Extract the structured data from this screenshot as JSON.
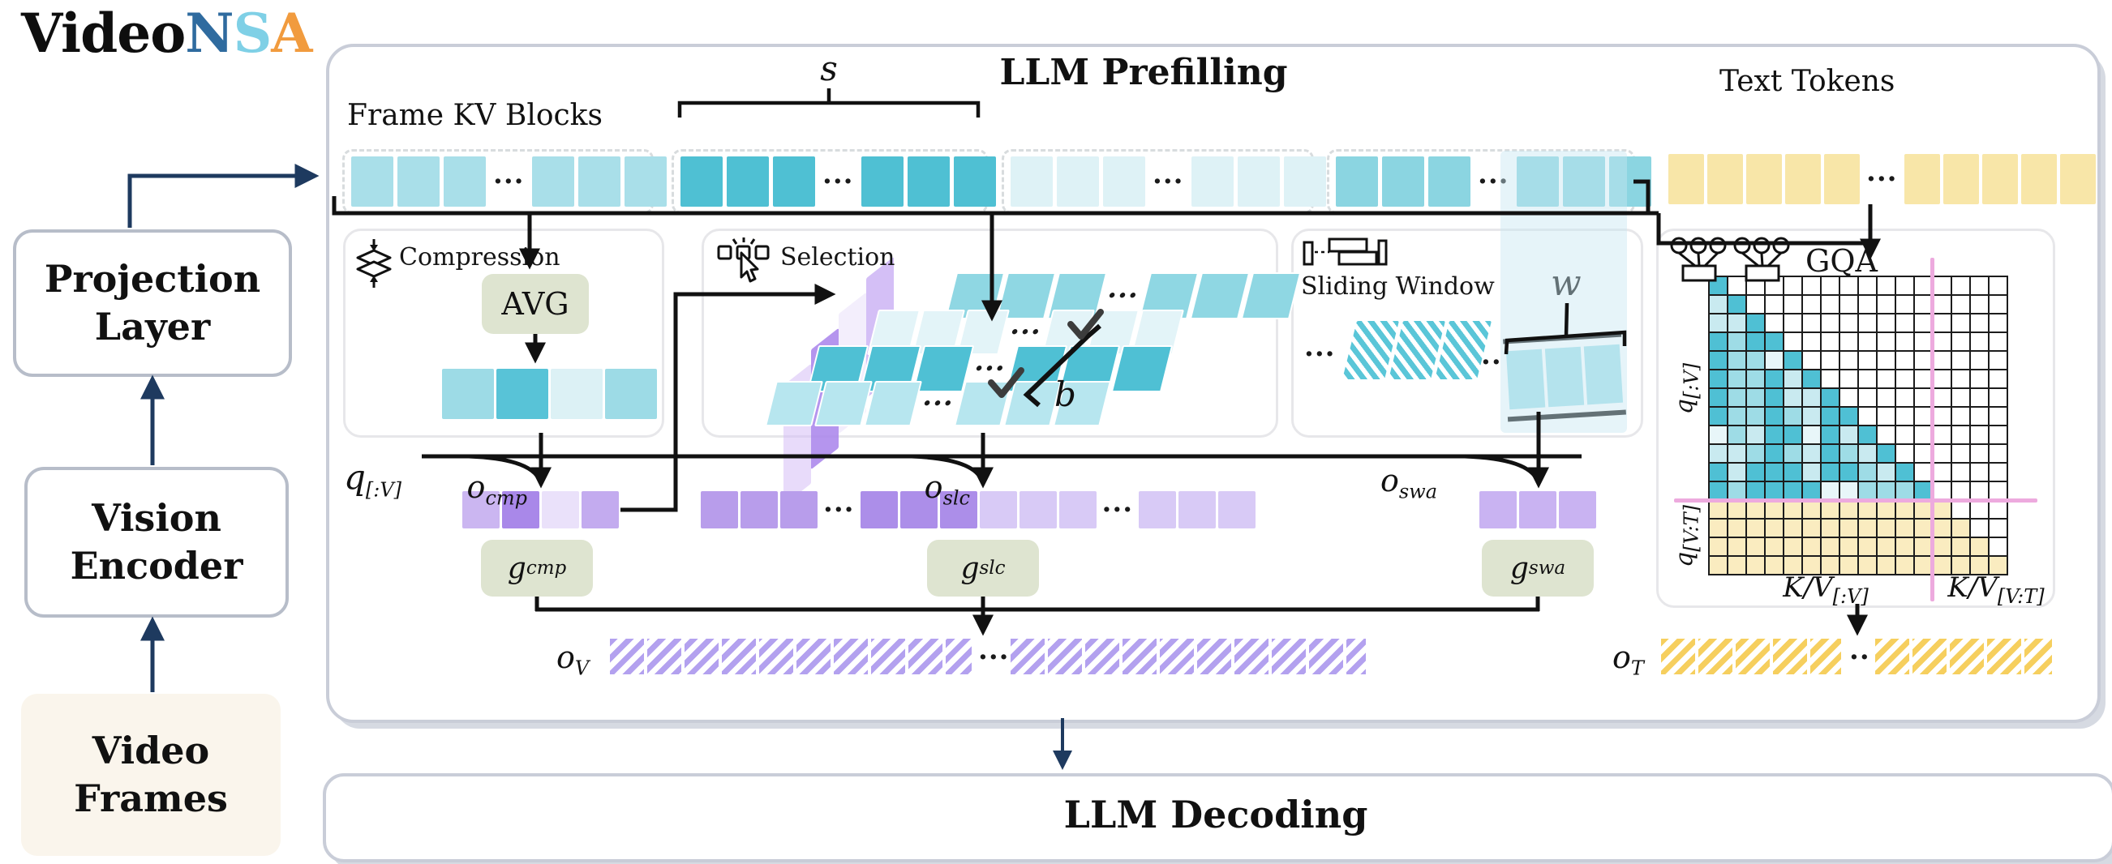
{
  "logo": {
    "parts": [
      {
        "text": "Video",
        "color": "#0e0e0e"
      },
      {
        "text": "N",
        "color": "#2f6b9f"
      },
      {
        "text": "S",
        "color": "#7fd0e6"
      },
      {
        "text": "A",
        "color": "#f19b3e"
      }
    ]
  },
  "pipeline": {
    "projection": {
      "line1": "Projection",
      "line2": "Layer"
    },
    "vision": {
      "line1": "Vision",
      "line2": "Encoder"
    },
    "video": {
      "line1": "Video",
      "line2": "Frames"
    },
    "video_bg": "#faf5ec"
  },
  "prefill": {
    "title": "LLM Prefilling",
    "frame_kv_label": "Frame KV Blocks",
    "text_tokens_label": "Text Tokens",
    "s_label": "s",
    "kv_groups": [
      {
        "color": "#a9dfe9",
        "cells": [
          3,
          3
        ]
      },
      {
        "color": "#4fc0d3",
        "cells": [
          3,
          3
        ]
      },
      {
        "color": "#def2f6",
        "cells": [
          3,
          3
        ]
      },
      {
        "color": "#8bd5e1",
        "cells": [
          3,
          3
        ]
      }
    ],
    "text_tokens": {
      "color": "#f8e6a8",
      "cells": [
        5,
        5
      ]
    },
    "highlight_band_color": "rgba(199,231,241,0.45)"
  },
  "branches": {
    "compression": {
      "label": "Compression",
      "avg_label": "AVG",
      "result_cells": [
        "#9ddbe6",
        "#58c3d7",
        "#dcf1f5",
        "#9ddbe6"
      ]
    },
    "selection": {
      "label": "Selection",
      "b_label": "b",
      "row_colors": [
        "#8fd7e3",
        "#e3f4f8",
        "#4fc0d4",
        "#b7e6ef"
      ],
      "plane_colors": [
        "rgba(214,190,246,0.55)",
        "rgba(168,130,235,0.85)",
        "rgba(242,236,252,0.9)",
        "rgba(183,148,240,0.6)"
      ],
      "checkmarks": 2
    },
    "sliding": {
      "label": "Sliding Window",
      "w_label": "w",
      "window_cells": [
        "#a5e0ea",
        "#a5e0ea",
        "#a5e0ea"
      ],
      "hatch_cells": 3
    },
    "gqa": {
      "label": "GQA",
      "y_label_top": {
        "base": "q",
        "sub": "[:V]"
      },
      "y_label_bottom": {
        "base": "q",
        "sub": "[V:T]"
      },
      "x_label_left": {
        "base": "K/V",
        "sub": "[:V]"
      },
      "x_label_right": {
        "base": "K/V",
        "sub": "[V:T]"
      },
      "grid": {
        "cols": 16,
        "rows": 16,
        "vision_cols": 12,
        "vision_rows": 12,
        "shade_map": {
          "D": "#4fc0d4",
          "M": "#9edce6",
          "L": "#c9eaf0",
          "X": "#e8f6f9"
        },
        "cyan_rows": [
          "D",
          "LD",
          "LLD",
          "DMDD",
          "DMMXD",
          "DMMDLD",
          "DMMDLLD",
          "DMMDMLDD",
          "XMLDDXDLD",
          "LLMDMLDMLD",
          "DLDDDLDDMLD",
          "DMDDDDXXMMMD"
        ],
        "yellow_fill_per_row": [
          13,
          14,
          15,
          16
        ],
        "yellow_color": "#faecc0",
        "divider_color": "#edaade"
      }
    }
  },
  "gating": {
    "q_label": {
      "base": "q",
      "sub": "[:V]"
    },
    "o_cmp": {
      "base": "o",
      "sub": "cmp"
    },
    "o_slc": {
      "base": "o",
      "sub": "slc"
    },
    "o_swa": {
      "base": "o",
      "sub": "swa"
    },
    "g_cmp": {
      "base": "g",
      "sub": "cmp"
    },
    "g_slc": {
      "base": "g",
      "sub": "slc"
    },
    "g_swa": {
      "base": "g",
      "sub": "swa"
    },
    "o_cmp_cells": [
      "#cbb6f1",
      "#a988e9",
      "#eae1fa",
      "#c3abef"
    ],
    "o_slc_segments": [
      [
        "#b89deb",
        "#b89deb",
        "#b89deb"
      ],
      [
        "#ac8ee9",
        "#ac8ee9",
        "#ac8ee9",
        "#d8caf6",
        "#d8caf6",
        "#d8caf6"
      ],
      [
        "#d8caf6",
        "#d8caf6",
        "#d8caf6"
      ]
    ],
    "o_swa_cells": [
      "#c9b3f2",
      "#c9b3f2",
      "#c9b3f2"
    ]
  },
  "outputs": {
    "o_v": {
      "base": "o",
      "sub": "V"
    },
    "o_t": {
      "base": "o",
      "sub": "T"
    },
    "v_stripe_color": "#b3a1ef",
    "t_stripe_color": "#f6cf5e"
  },
  "decoding": {
    "title": "LLM Decoding"
  },
  "dots3": "···",
  "dots2": "··"
}
